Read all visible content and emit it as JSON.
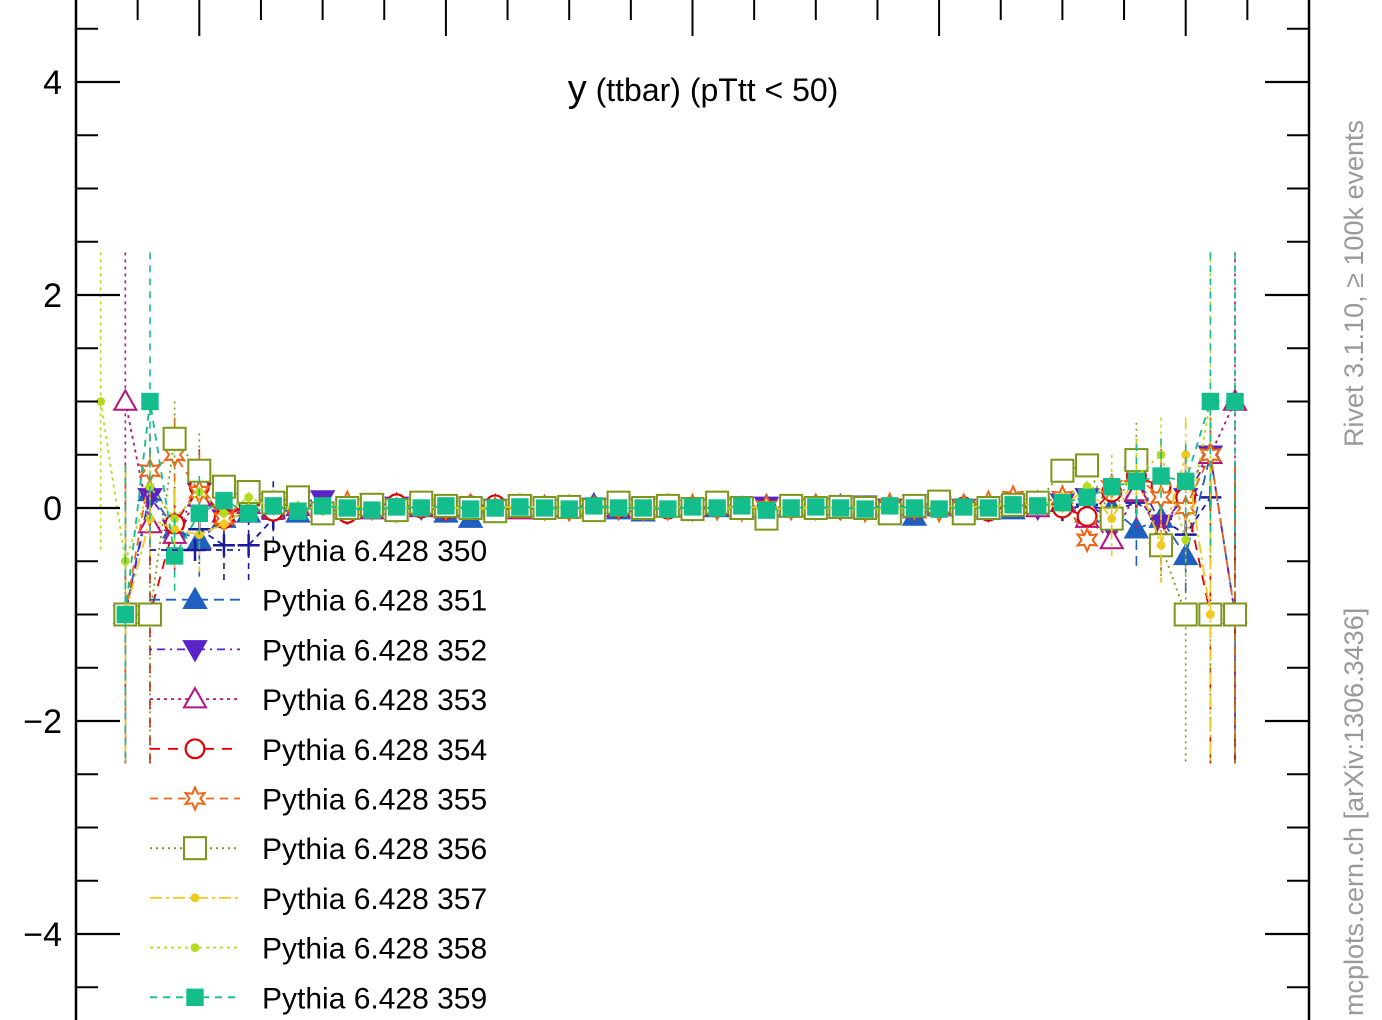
{
  "chart_data": {
    "type": "scatter",
    "title": "y (ttbar) (pTtt < 50)",
    "title_main": "y",
    "title_rest": " (ttbar) (pTtt < 50)",
    "xlabel": "",
    "ylabel": "",
    "xlim": [
      -2.5,
      2.5
    ],
    "ylim": [
      -4.6,
      4.6
    ],
    "yticks": [
      4,
      2,
      0,
      -2,
      -4
    ],
    "ytick_labels": [
      "4",
      "2",
      "0",
      "−2",
      "−4"
    ],
    "grid": false,
    "legend_position": "bottom-left",
    "series": [
      {
        "name": "Pythia 6.428 350",
        "color": "#1a1a9a",
        "marker": "plus",
        "dash": "6,5",
        "x_start": -2.0,
        "x_step": 0.1,
        "values": [
          -0.2,
          -0.35,
          -0.35,
          -0.1,
          0.05,
          0.0,
          -0.05,
          0.03,
          -0.02,
          0.02,
          -0.03,
          0.02,
          -0.02,
          0.01,
          0.0,
          -0.01,
          0.02,
          0.0,
          -0.01,
          0.01,
          0.0,
          0.0,
          0.01,
          -0.01,
          0.0,
          0.02,
          -0.01,
          0.0,
          0.01,
          -0.02,
          0.0,
          0.01,
          -0.01,
          0.02,
          0.0,
          -0.02,
          0.03,
          -0.03,
          0.05,
          -0.1,
          -0.25,
          0.1
        ]
      },
      {
        "name": "Pythia 6.428 351",
        "color": "#1f5fbf",
        "marker": "triangle-up-filled",
        "dash": "10,6",
        "x_start": -2.3,
        "x_step": 0.1,
        "values": [
          -1.0,
          0.15,
          -0.2,
          -0.3,
          -0.1,
          -0.05,
          0.0,
          -0.05,
          0.03,
          -0.02,
          0.02,
          -0.03,
          0.02,
          -0.05,
          -0.1,
          0.02,
          -0.01,
          0.0,
          0.01,
          0.03,
          -0.02,
          -0.04,
          0.0,
          0.01,
          0.0,
          -0.01,
          0.02,
          0.0,
          -0.01,
          0.02,
          0.0,
          -0.05,
          -0.08,
          0.01,
          0.02,
          0.0,
          -0.02,
          0.03,
          0.05,
          -0.05,
          0.0,
          -0.2,
          -0.1,
          -0.45,
          0.5,
          -1.0
        ]
      },
      {
        "name": "Pythia 6.428 352",
        "color": "#5a23c8",
        "marker": "triangle-down-filled",
        "dash": "2,5,8,5",
        "x_start": -2.3,
        "x_step": 0.1,
        "values": [
          -1.0,
          0.1,
          -0.2,
          0.15,
          -0.1,
          0.05,
          0.0,
          0.06,
          0.08,
          0.0,
          0.05,
          0.02,
          0.0,
          -0.02,
          0.01,
          0.0,
          0.03,
          0.0,
          -0.01,
          0.01,
          0.0,
          0.0,
          0.02,
          -0.01,
          0.0,
          0.01,
          0.02,
          0.0,
          0.0,
          0.01,
          0.03,
          0.0,
          0.04,
          0.02,
          0.0,
          -0.02,
          0.03,
          0.0,
          0.05,
          0.1,
          -0.2,
          0.3,
          -0.15,
          0.1,
          0.5,
          -1.0
        ]
      },
      {
        "name": "Pythia 6.428 353",
        "color": "#b4147d",
        "marker": "triangle-up-open",
        "dash": "3,4",
        "x_start": -2.3,
        "x_step": 0.1,
        "values": [
          1.0,
          -0.15,
          -0.25,
          0.1,
          -0.05,
          0.03,
          -0.02,
          0.01,
          0.0,
          0.02,
          -0.02,
          0.03,
          0.0,
          -0.01,
          0.02,
          0.0,
          -0.02,
          0.01,
          0.0,
          0.01,
          0.0,
          -0.01,
          0.02,
          0.0,
          0.01,
          -0.02,
          0.0,
          0.01,
          0.02,
          -0.01,
          0.0,
          0.02,
          -0.01,
          0.03,
          0.0,
          -0.02,
          0.04,
          0.0,
          0.05,
          -0.1,
          -0.3,
          0.15,
          -0.25,
          0.2,
          0.5,
          1.0
        ]
      },
      {
        "name": "Pythia 6.428 354",
        "color": "#e00000",
        "marker": "circle-open",
        "dash": "10,8",
        "x_start": -2.3,
        "x_step": 0.1,
        "values": [
          -1.0,
          -1.0,
          -0.15,
          0.2,
          -0.1,
          0.05,
          -0.03,
          0.02,
          0.0,
          -0.05,
          0.02,
          0.04,
          0.0,
          -0.01,
          0.02,
          0.03,
          0.0,
          -0.01,
          0.0,
          0.01,
          0.0,
          0.01,
          -0.01,
          0.0,
          0.02,
          0.0,
          -0.01,
          0.01,
          0.0,
          0.02,
          0.0,
          -0.01,
          0.03,
          0.0,
          0.01,
          -0.03,
          0.02,
          0.05,
          0.0,
          -0.08,
          0.15,
          0.3,
          0.2,
          0.1,
          -1.0,
          -1.0
        ]
      },
      {
        "name": "Pythia 6.428 355",
        "color": "#f06414",
        "marker": "star-open",
        "dash": "8,6",
        "x_start": -2.3,
        "x_step": 0.1,
        "values": [
          -1.0,
          0.35,
          0.5,
          0.15,
          -0.1,
          0.1,
          0.05,
          0.02,
          -0.03,
          0.05,
          0.0,
          -0.02,
          0.03,
          0.0,
          0.01,
          -0.01,
          0.02,
          0.0,
          -0.01,
          0.0,
          0.01,
          -0.01,
          0.0,
          0.02,
          0.0,
          -0.01,
          0.01,
          0.0,
          0.02,
          0.0,
          -0.02,
          0.03,
          0.0,
          -0.02,
          0.02,
          0.05,
          0.1,
          0.05,
          0.1,
          -0.3,
          0.2,
          0.3,
          0.1,
          0.0,
          0.5,
          -1.0
        ]
      },
      {
        "name": "Pythia 6.428 356",
        "color": "#7d9619",
        "marker": "square-open",
        "dash": "2,4",
        "x_start": -2.3,
        "x_step": 0.1,
        "values": [
          -1.0,
          -1.0,
          0.65,
          0.35,
          0.2,
          0.15,
          0.05,
          0.1,
          -0.05,
          0.0,
          0.03,
          -0.02,
          0.05,
          0.02,
          0.0,
          -0.03,
          0.02,
          0.0,
          0.01,
          -0.02,
          0.05,
          0.0,
          0.02,
          -0.01,
          0.05,
          0.0,
          -0.1,
          0.02,
          0.0,
          0.01,
          0.0,
          -0.05,
          0.02,
          0.06,
          -0.05,
          0.0,
          0.03,
          0.05,
          0.35,
          0.4,
          -0.1,
          0.45,
          -0.35,
          -1.0,
          -1.0,
          -1.0
        ]
      },
      {
        "name": "Pythia 6.428 357",
        "color": "#f0c81e",
        "marker": "dot",
        "dash": "12,4,3,4",
        "x_start": -2.3,
        "x_step": 0.1,
        "values": [
          -1.0,
          -0.1,
          -0.2,
          -0.25,
          -0.15,
          0.0,
          0.03,
          -0.02,
          0.02,
          0.0,
          -0.01,
          0.02,
          0.0,
          0.01,
          -0.01,
          0.0,
          0.02,
          0.0,
          -0.01,
          0.01,
          0.0,
          -0.01,
          0.01,
          0.0,
          0.0,
          0.02,
          -0.01,
          0.0,
          0.01,
          0.0,
          -0.02,
          0.01,
          0.0,
          0.02,
          -0.01,
          0.03,
          0.0,
          0.05,
          0.0,
          0.2,
          -0.1,
          0.3,
          -0.35,
          0.5,
          -1.0
        ]
      },
      {
        "name": "Pythia 6.428 358",
        "color": "#b4dc1e",
        "marker": "dot",
        "dash": "3,4",
        "x_start": -2.4,
        "x_step": 0.1,
        "values": [
          1.0,
          -0.5,
          0.2,
          -0.1,
          0.15,
          -0.05,
          0.1,
          0.0,
          0.02,
          -0.03,
          0.02,
          0.0,
          -0.01,
          0.02,
          0.0,
          0.01,
          -0.01,
          0.0,
          0.02,
          0.0,
          -0.01,
          0.01,
          0.0,
          0.0,
          0.01,
          -0.01,
          0.0,
          0.02,
          0.0,
          -0.01,
          0.01,
          0.0,
          -0.02,
          0.02,
          0.0,
          0.03,
          0.0,
          0.05,
          0.02,
          0.1,
          0.2,
          0.15,
          0.3,
          0.5,
          -0.3,
          1.0
        ]
      },
      {
        "name": "Pythia 6.428 359",
        "color": "#14be8c",
        "marker": "square-filled",
        "dash": "7,6",
        "x_start": -2.3,
        "x_step": 0.1,
        "values": [
          -1.0,
          1.0,
          -0.45,
          -0.05,
          0.07,
          -0.05,
          0.02,
          -0.03,
          0.02,
          0.0,
          -0.02,
          0.01,
          0.0,
          0.02,
          -0.01,
          0.0,
          0.01,
          0.0,
          -0.01,
          0.02,
          0.0,
          0.0,
          -0.01,
          0.01,
          0.0,
          0.02,
          -0.02,
          0.0,
          0.01,
          0.0,
          -0.01,
          0.02,
          0.0,
          -0.01,
          0.01,
          0.0,
          0.03,
          0.02,
          0.05,
          0.1,
          0.2,
          0.25,
          0.3,
          0.25,
          1.0,
          1.0
        ]
      }
    ]
  },
  "side_label_top": "Rivet 3.1.10, ≥ 100k events",
  "side_label_bottom": "mcplots.cern.ch [arXiv:1306.3436]"
}
